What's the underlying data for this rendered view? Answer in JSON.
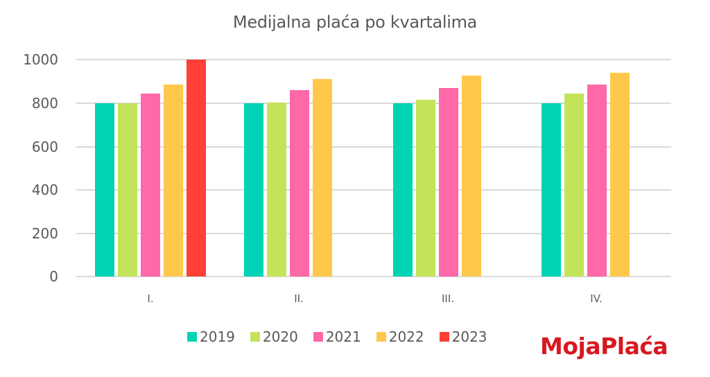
{
  "chart_data": {
    "type": "bar",
    "title": "Medijalna plaća po kvartalima",
    "xlabel": "",
    "ylabel": "",
    "ylim": [
      0,
      1000
    ],
    "yticks": [
      0,
      200,
      400,
      600,
      800,
      1000
    ],
    "grid": true,
    "legend_position": "bottom",
    "categories": [
      "I.",
      "II.",
      "III.",
      "IV."
    ],
    "series": [
      {
        "name": "2019",
        "color": "#00d4b4",
        "values": [
          800,
          800,
          800,
          800
        ]
      },
      {
        "name": "2020",
        "color": "#c3e35b",
        "values": [
          800,
          802,
          815,
          845
        ]
      },
      {
        "name": "2021",
        "color": "#ff69a8",
        "values": [
          845,
          860,
          870,
          885
        ]
      },
      {
        "name": "2022",
        "color": "#ffc84a",
        "values": [
          885,
          910,
          925,
          940
        ]
      },
      {
        "name": "2023",
        "color": "#ff4036",
        "values": [
          1000,
          null,
          null,
          null
        ]
      }
    ]
  },
  "title": "Medijalna plaća po kvartalima",
  "yticks": [
    "0",
    "200",
    "400",
    "600",
    "800",
    "1000"
  ],
  "xticks": [
    "I.",
    "II.",
    "III.",
    "IV."
  ],
  "legend": [
    "2019",
    "2020",
    "2021",
    "2022",
    "2023"
  ],
  "logo": "MojaPlaća"
}
